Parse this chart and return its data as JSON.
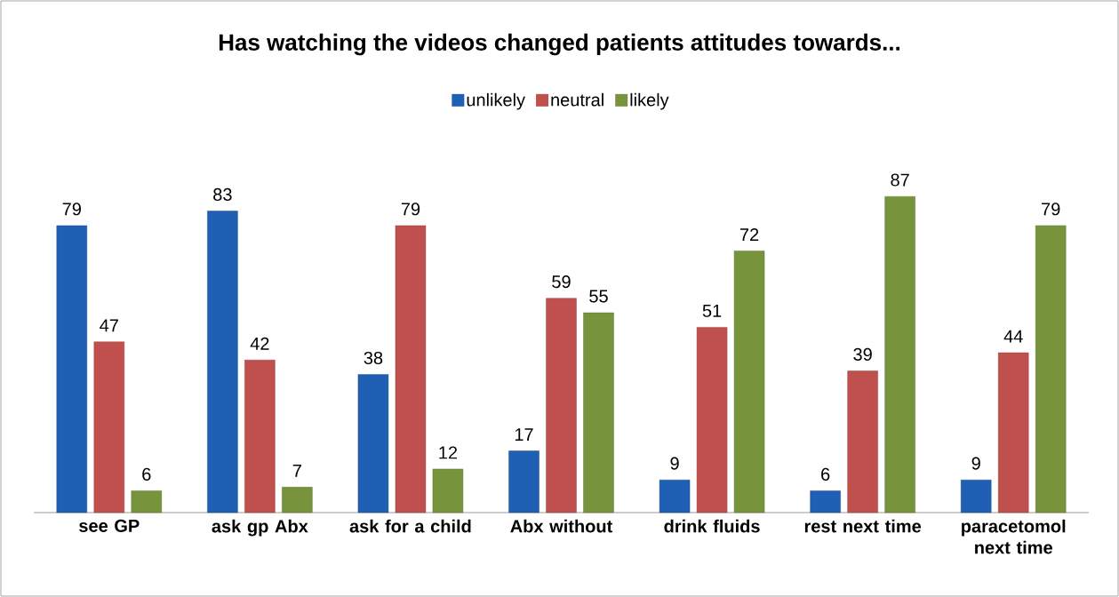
{
  "chart_data": {
    "type": "bar",
    "title": "Has watching the videos changed patients attitudes towards...",
    "categories": [
      "see GP",
      "ask gp Abx",
      "ask for a child",
      "Abx without",
      "drink fluids",
      "rest next time",
      "paracetomol next time"
    ],
    "series": [
      {
        "name": "unlikely",
        "color": "#1f5fb4",
        "values": [
          79,
          83,
          38,
          17,
          9,
          6,
          9
        ]
      },
      {
        "name": "neutral",
        "color": "#c0504d",
        "values": [
          47,
          42,
          79,
          59,
          51,
          39,
          44
        ]
      },
      {
        "name": "likely",
        "color": "#77933c",
        "values": [
          6,
          7,
          12,
          55,
          72,
          87,
          79
        ]
      }
    ],
    "data_labels": true,
    "legend": "top"
  }
}
